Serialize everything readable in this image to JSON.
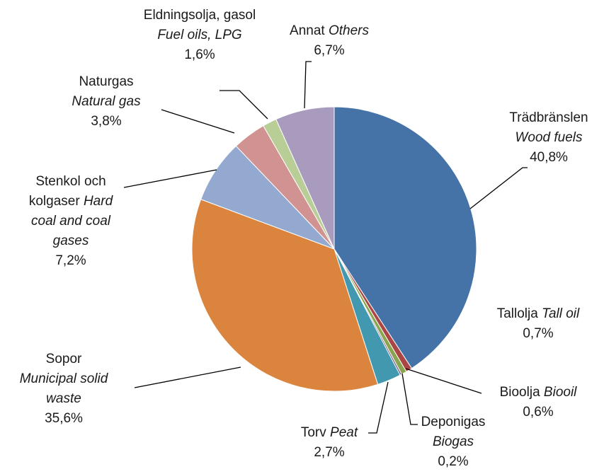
{
  "chart_data": {
    "type": "pie",
    "categories": [
      "Trädbränslen",
      "Tallolja",
      "Bioolja",
      "Deponigas",
      "Torv",
      "Sopor",
      "Stenkol och kolgaser",
      "Naturgas",
      "Eldningsolja, gasol",
      "Annat"
    ],
    "categories_en": [
      "Wood fuels",
      "Tall oil",
      "Biooil",
      "Biogas",
      "Peat",
      "Municipal solid waste",
      "Hard coal and coal gases",
      "Natural gas",
      "Fuel oils, LPG",
      "Others"
    ],
    "values": [
      40.8,
      0.7,
      0.6,
      0.2,
      2.7,
      35.6,
      7.2,
      3.8,
      1.6,
      6.7
    ],
    "value_labels": [
      "40,8%",
      "0,7%",
      "0,6%",
      "0,2%",
      "2,7%",
      "35,6%",
      "7,2%",
      "3,8%",
      "1,6%",
      "6,7%"
    ],
    "colors": [
      "#4572a7",
      "#aa4643",
      "#89a54e",
      "#71588f",
      "#4198af",
      "#db843d",
      "#93a9cf",
      "#d19392",
      "#b9cd96",
      "#a99bbd"
    ]
  }
}
